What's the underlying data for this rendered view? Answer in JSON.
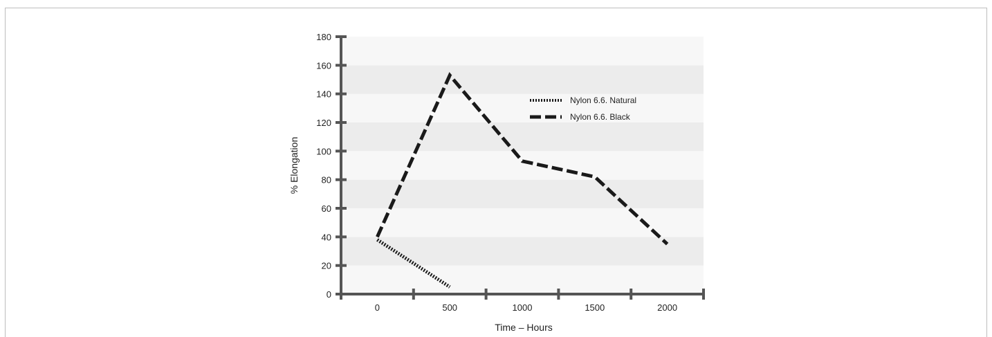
{
  "chart_data": {
    "type": "line",
    "xlabel": "Time – Hours",
    "ylabel": "% Elongation",
    "xlim": [
      -250,
      2250
    ],
    "ylim": [
      0,
      180
    ],
    "xticks": [
      0,
      500,
      1000,
      1500,
      2000
    ],
    "yticks": [
      0,
      20,
      40,
      60,
      80,
      100,
      120,
      140,
      160,
      180
    ],
    "grid": "alternating horizontal bands",
    "legend_position": "top-right",
    "series": [
      {
        "name": "Nylon 6.6. Natural",
        "style": "dotted",
        "x": [
          0,
          500
        ],
        "y": [
          38,
          5
        ]
      },
      {
        "name": "Nylon 6.6. Black",
        "style": "dashed",
        "x": [
          0,
          500,
          1000,
          1500,
          2000
        ],
        "y": [
          40,
          153,
          93,
          82,
          35
        ]
      }
    ],
    "colors": {
      "line": "#1a1a1a",
      "axis": "#555555",
      "band_light": "#f7f7f7",
      "band_dark": "#ececec"
    }
  }
}
